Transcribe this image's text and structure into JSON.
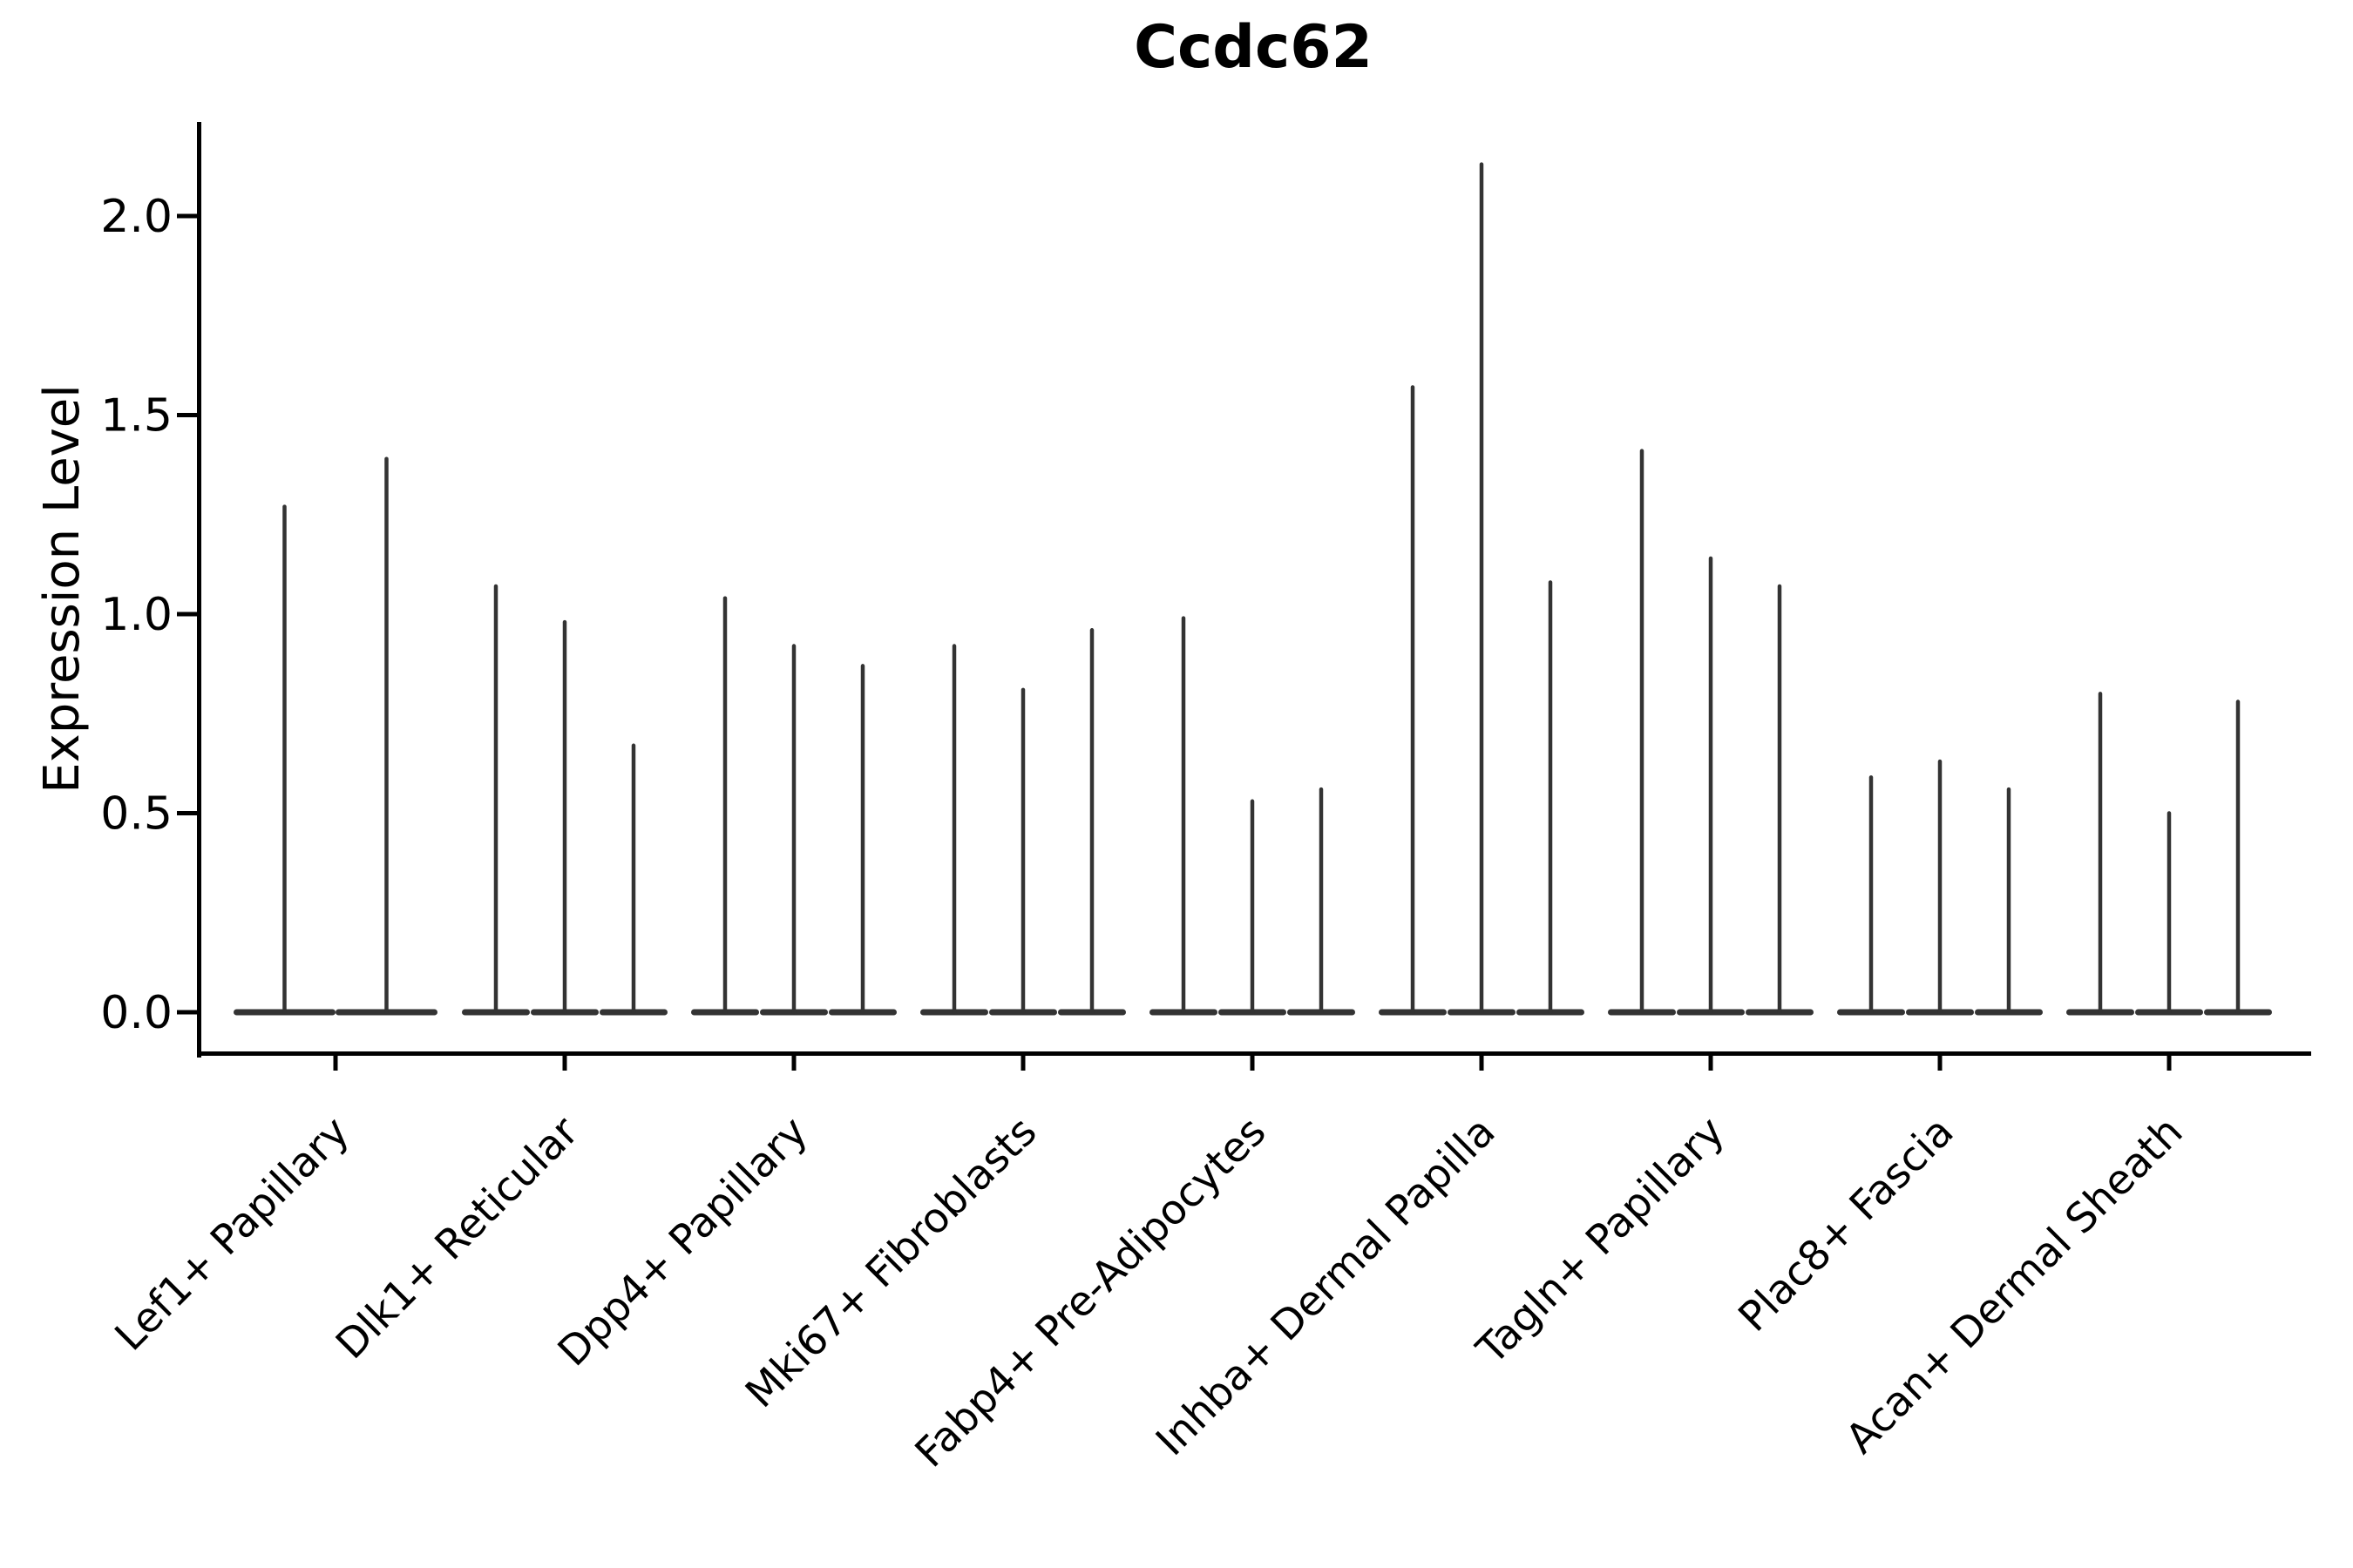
{
  "chart_data": {
    "type": "violin",
    "title": "Ccdc62",
    "xlabel": "",
    "ylabel": "Expression Level",
    "ytick_labels": [
      "0.0",
      "0.5",
      "1.0",
      "1.5",
      "2.0"
    ],
    "ytick_values": [
      0,
      0.5,
      1.0,
      1.5,
      2.0
    ],
    "ylim": [
      -0.11,
      2.24
    ],
    "grid": false,
    "legend": null,
    "violin_color": "#333333",
    "axis_color": "#000000",
    "categories": [
      {
        "label": "Lef1+ Papillary",
        "spike_heights": [
          1.27,
          1.39
        ]
      },
      {
        "label": "Dlk1+ Reticular",
        "spike_heights": [
          1.07,
          0.98,
          0.67
        ]
      },
      {
        "label": "Dpp4+ Papillary",
        "spike_heights": [
          1.04,
          0.92,
          0.87
        ]
      },
      {
        "label": "Mki67+ Fibroblasts",
        "spike_heights": [
          0.92,
          0.81,
          0.96
        ]
      },
      {
        "label": "Fabp4+ Pre-Adipocytes",
        "spike_heights": [
          0.99,
          0.53,
          0.56
        ]
      },
      {
        "label": "Inhba+ Dermal Papilla",
        "spike_heights": [
          1.57,
          2.13,
          1.08
        ]
      },
      {
        "label": "Tagln+ Papillary",
        "spike_heights": [
          1.41,
          1.14,
          1.07
        ]
      },
      {
        "label": "Plac8+ Fascia",
        "spike_heights": [
          0.59,
          0.63,
          0.56
        ]
      },
      {
        "label": "Acan+ Dermal Sheath",
        "spike_heights": [
          0.8,
          0.5,
          0.78
        ]
      }
    ]
  }
}
